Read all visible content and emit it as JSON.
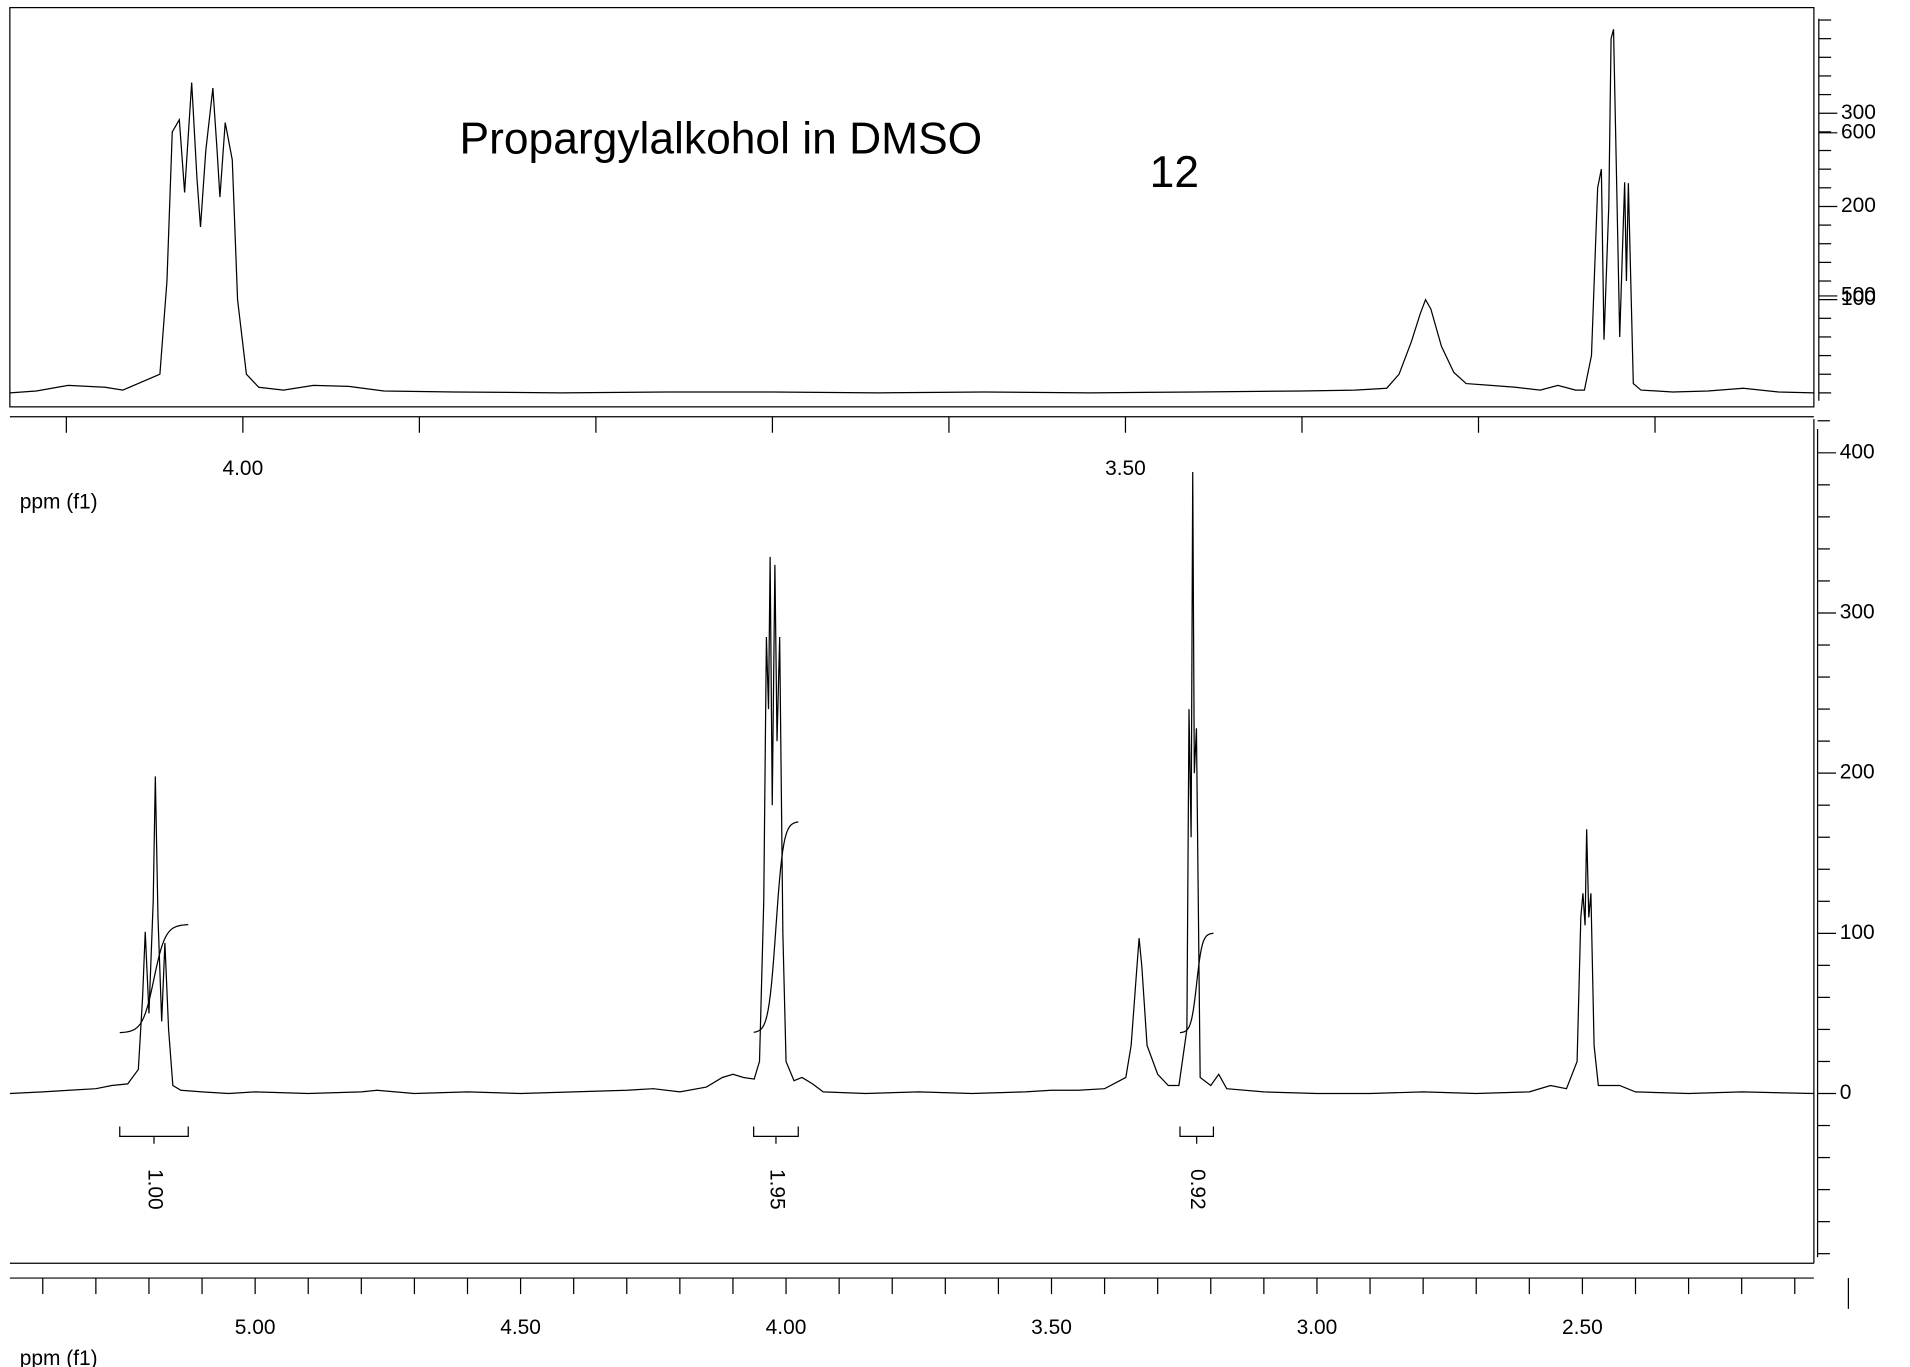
{
  "chart_data": [
    {
      "type": "line",
      "title": "Propargylalkohol in DMSO",
      "annotation": "12",
      "xlabel": "ppm (f1)",
      "xlim": [
        4.132,
        3.11
      ],
      "xticks": [
        {
          "value": 4.0,
          "label": "4.00"
        },
        {
          "value": 3.5,
          "label": "3.50"
        }
      ],
      "xminor": [
        4.1,
        3.9,
        3.8,
        3.7,
        3.6,
        3.4,
        3.3,
        3.2
      ],
      "ylim": [
        -15,
        412
      ],
      "yticks": [
        100,
        200,
        300
      ],
      "yminor": [
        0,
        20,
        40,
        60,
        80,
        120,
        140,
        160,
        180,
        220,
        240,
        260,
        280,
        320,
        340,
        360,
        380,
        400
      ],
      "y2lim": [
        432,
        676
      ],
      "y2ticks": [
        500,
        600
      ],
      "x": [
        4.132,
        4.117,
        4.099,
        4.078,
        4.068,
        4.047,
        4.043,
        4.04,
        4.036,
        4.033,
        4.029,
        4.026,
        4.024,
        4.021,
        4.017,
        4.0146,
        4.013,
        4.01,
        4.006,
        4.003,
        3.998,
        3.991,
        3.977,
        3.96,
        3.94,
        3.92,
        3.88,
        3.82,
        3.76,
        3.7,
        3.64,
        3.58,
        3.52,
        3.46,
        3.4,
        3.37,
        3.352,
        3.345,
        3.338,
        3.333,
        3.33,
        3.327,
        3.321,
        3.314,
        3.307,
        3.293,
        3.279,
        3.265,
        3.255,
        3.245,
        3.24,
        3.236,
        3.2325,
        3.2304,
        3.2289,
        3.2262,
        3.2249,
        3.2235,
        3.222,
        3.22,
        3.2185,
        3.2172,
        3.2162,
        3.2151,
        3.2123,
        3.208,
        3.19,
        3.17,
        3.15,
        3.13,
        3.11
      ],
      "series": [
        {
          "color": "#000000",
          "values": [
            0,
            2,
            8,
            6,
            3,
            20,
            120,
            280,
            293,
            215,
            333,
            230,
            178,
            260,
            327,
            260,
            210,
            290,
            250,
            100,
            20,
            6,
            3,
            8,
            7,
            2,
            1,
            0,
            1,
            1,
            0,
            1,
            0,
            1,
            2,
            3,
            5,
            20,
            55,
            85,
            100,
            90,
            50,
            22,
            10,
            8,
            6,
            3,
            8,
            3,
            3,
            40,
            220,
            240,
            57,
            200,
            380,
            390,
            250,
            60,
            150,
            226,
            120,
            225,
            10,
            3,
            1,
            2,
            5,
            1,
            0
          ]
        }
      ]
    },
    {
      "type": "line",
      "xlabel": "ppm (f1)",
      "xlim": [
        5.462,
        2.064
      ],
      "xticks": [
        {
          "value": 5.0,
          "label": "5.00"
        },
        {
          "value": 4.5,
          "label": "4.50"
        },
        {
          "value": 4.0,
          "label": "4.00"
        },
        {
          "value": 3.5,
          "label": "3.50"
        },
        {
          "value": 3.0,
          "label": "3.00"
        },
        {
          "value": 2.5,
          "label": "2.50"
        }
      ],
      "xminor": [
        5.4,
        5.3,
        5.2,
        5.1,
        4.9,
        4.8,
        4.7,
        4.6,
        4.4,
        4.3,
        4.2,
        4.1,
        3.9,
        3.8,
        3.7,
        3.6,
        3.4,
        3.3,
        3.2,
        3.1,
        2.9,
        2.8,
        2.7,
        2.6,
        2.4,
        2.3,
        2.2,
        2.1
      ],
      "ylim": [
        -106,
        421
      ],
      "yticks": [
        0,
        100,
        200,
        300,
        400
      ],
      "yminor": [
        -100,
        -80,
        -60,
        -40,
        -20,
        20,
        40,
        60,
        80,
        120,
        140,
        160,
        180,
        220,
        240,
        260,
        280,
        320,
        340,
        360,
        380,
        420
      ],
      "x": [
        5.462,
        5.4,
        5.35,
        5.3,
        5.27,
        5.24,
        5.22,
        5.212,
        5.207,
        5.2,
        5.192,
        5.188,
        5.183,
        5.176,
        5.17,
        5.163,
        5.155,
        5.14,
        5.1,
        5.05,
        5.0,
        4.9,
        4.8,
        4.77,
        4.7,
        4.6,
        4.5,
        4.4,
        4.3,
        4.25,
        4.2,
        4.15,
        4.12,
        4.1,
        4.08,
        4.06,
        4.05,
        4.042,
        4.037,
        4.033,
        4.03,
        4.026,
        4.021,
        4.017,
        4.012,
        4.006,
        4.0,
        3.985,
        3.97,
        3.95,
        3.93,
        3.85,
        3.75,
        3.65,
        3.55,
        3.5,
        3.45,
        3.4,
        3.36,
        3.35,
        3.34,
        3.335,
        3.33,
        3.32,
        3.3,
        3.28,
        3.26,
        3.245,
        3.241,
        3.237,
        3.234,
        3.231,
        3.227,
        3.22,
        3.2,
        3.185,
        3.17,
        3.1,
        3.0,
        2.9,
        2.8,
        2.7,
        2.6,
        2.56,
        2.53,
        2.51,
        2.503,
        2.499,
        2.495,
        2.492,
        2.488,
        2.484,
        2.478,
        2.47,
        2.43,
        2.4,
        2.3,
        2.2,
        2.064
      ],
      "series": [
        {
          "color": "#000000",
          "values": [
            0,
            1,
            2,
            3,
            5,
            6,
            15,
            60,
            101,
            50,
            120,
            198,
            110,
            45,
            94,
            40,
            5,
            2,
            1,
            0,
            1,
            0,
            1,
            2,
            0,
            1,
            0,
            1,
            2,
            3,
            1,
            4,
            10,
            12,
            10,
            9,
            20,
            120,
            285,
            240,
            335,
            180,
            330,
            220,
            285,
            100,
            20,
            8,
            10,
            6,
            1,
            0,
            1,
            0,
            1,
            2,
            2,
            3,
            10,
            30,
            75,
            97,
            80,
            30,
            12,
            5,
            5,
            40,
            240,
            160,
            388,
            200,
            228,
            10,
            5,
            12,
            3,
            1,
            0,
            0,
            1,
            0,
            1,
            5,
            3,
            20,
            110,
            125,
            105,
            165,
            110,
            125,
            30,
            5,
            5,
            1,
            0,
            1,
            0
          ]
        }
      ],
      "integrals": {
        "values": [
          1,
          1.95,
          0.92
        ],
        "value_labels": [
          "1.00",
          "1.95",
          "0.92"
        ],
        "ranges": [
          [
            5.255,
            5.126
          ],
          [
            4.061,
            3.977
          ],
          [
            3.258,
            3.195
          ]
        ]
      }
    }
  ]
}
